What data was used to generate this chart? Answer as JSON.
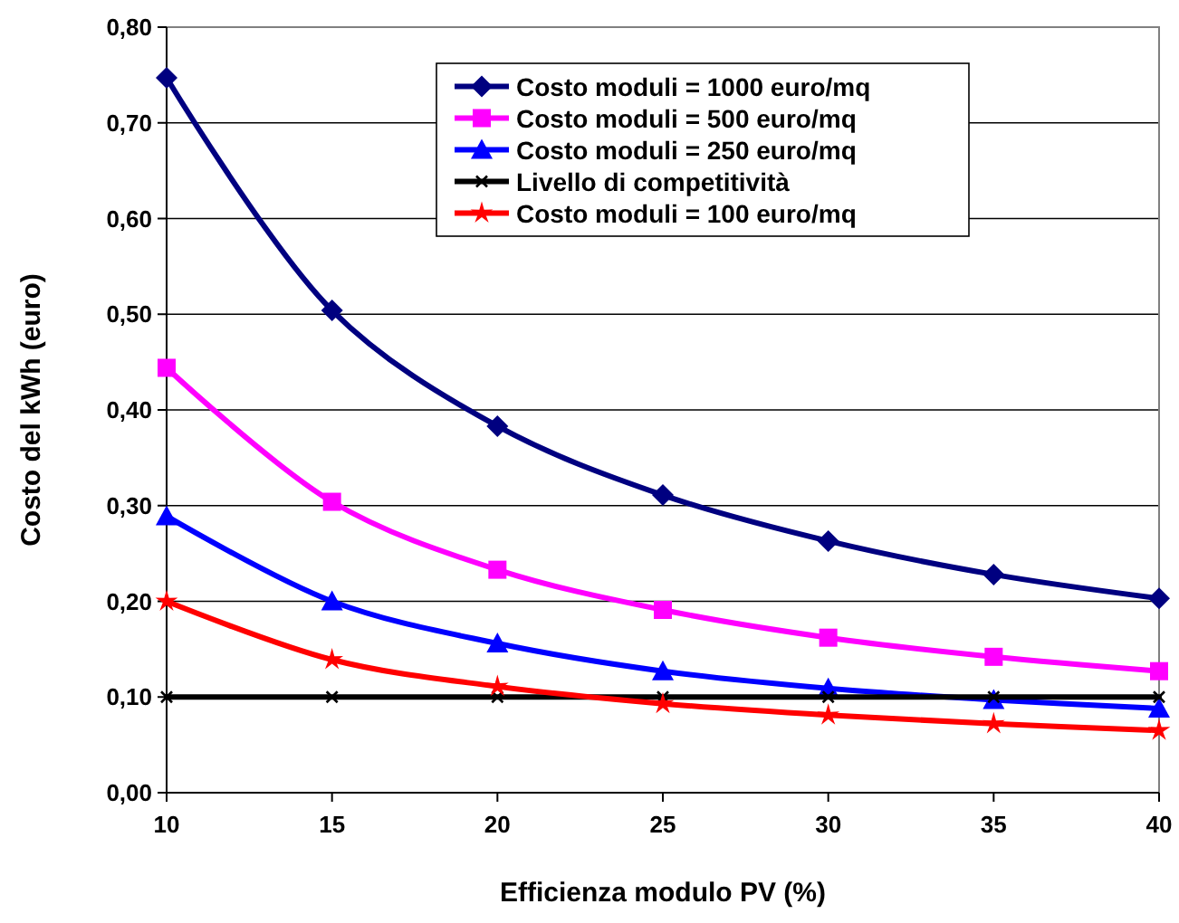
{
  "chart_data": {
    "type": "line",
    "xlabel": "Efficienza modulo PV (%)",
    "ylabel": "Costo del kWh (euro)",
    "x": [
      10,
      15,
      20,
      25,
      30,
      35,
      40
    ],
    "series": [
      {
        "name": "Costo moduli = 1000 euro/mq",
        "color": "#000080",
        "marker": "diamond",
        "values": [
          0.747,
          0.504,
          0.383,
          0.311,
          0.263,
          0.228,
          0.203
        ]
      },
      {
        "name": "Costo moduli = 500 euro/mq",
        "color": "#ff00ff",
        "marker": "square",
        "values": [
          0.444,
          0.304,
          0.233,
          0.191,
          0.162,
          0.142,
          0.127
        ]
      },
      {
        "name": "Costo moduli = 250 euro/mq",
        "color": "#0000ff",
        "marker": "triangle",
        "values": [
          0.289,
          0.2,
          0.156,
          0.127,
          0.109,
          0.097,
          0.088
        ]
      },
      {
        "name": "Livello di competitività",
        "color": "#000000",
        "marker": "cross",
        "values": [
          0.1,
          0.1,
          0.1,
          0.1,
          0.1,
          0.1,
          0.1
        ]
      },
      {
        "name": "Costo moduli = 100 euro/mq",
        "color": "#ff0000",
        "marker": "star",
        "values": [
          0.2,
          0.139,
          0.111,
          0.093,
          0.081,
          0.072,
          0.065
        ]
      }
    ],
    "xlim": [
      10,
      40
    ],
    "xticks": [
      10,
      15,
      20,
      25,
      30,
      35,
      40
    ],
    "ylim": [
      0,
      0.8
    ],
    "yticks": [
      {
        "value": 0,
        "label": "0,00"
      },
      {
        "value": 0.1,
        "label": "0,10"
      },
      {
        "value": 0.2,
        "label": "0,20"
      },
      {
        "value": 0.3,
        "label": "0,30"
      },
      {
        "value": 0.4,
        "label": "0,40"
      },
      {
        "value": 0.5,
        "label": "0,50"
      },
      {
        "value": 0.6,
        "label": "0,60"
      },
      {
        "value": 0.7,
        "label": "0,70"
      },
      {
        "value": 0.8,
        "label": "0,80"
      }
    ],
    "grid": "y",
    "legend": "top right",
    "line_style": "solid"
  }
}
